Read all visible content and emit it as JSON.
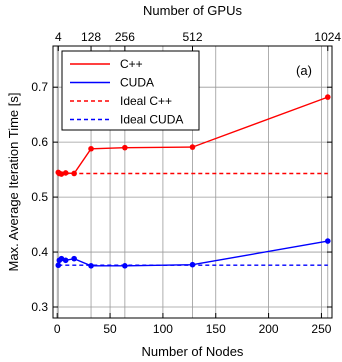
{
  "chart_data": {
    "type": "line",
    "xlabel": "Number of Nodes",
    "ylabel": "Max. Average Iteration Time [s]",
    "top_xlabel": "Number of GPUs",
    "annotation": "(a)",
    "xlim": [
      -4,
      260
    ],
    "ylim": [
      0.28,
      0.775
    ],
    "x_ticks": [
      0,
      50,
      100,
      150,
      200,
      250
    ],
    "y_ticks": [
      0.3,
      0.4,
      0.5,
      0.6,
      0.7
    ],
    "top_ticks": [
      {
        "label": "4",
        "nodes": 1
      },
      {
        "label": "128",
        "nodes": 32
      },
      {
        "label": "256",
        "nodes": 64
      },
      {
        "label": "512",
        "nodes": 128
      },
      {
        "label": "1024",
        "nodes": 256
      }
    ],
    "grid": true,
    "legend_position": "top-left",
    "series": [
      {
        "name": "C++",
        "color": "#ff0000",
        "dashed": false,
        "markers": true,
        "x": [
          1,
          2,
          4,
          8,
          16,
          32,
          64,
          128,
          256
        ],
        "y": [
          0.545,
          0.543,
          0.542,
          0.544,
          0.543,
          0.588,
          0.59,
          0.591,
          0.682
        ]
      },
      {
        "name": "CUDA",
        "color": "#0000ff",
        "dashed": false,
        "markers": true,
        "x": [
          1,
          2,
          4,
          8,
          16,
          32,
          64,
          128,
          256
        ],
        "y": [
          0.376,
          0.385,
          0.388,
          0.385,
          0.388,
          0.375,
          0.375,
          0.377,
          0.42
        ]
      },
      {
        "name": "Ideal C++",
        "color": "#ff0000",
        "dashed": true,
        "markers": false,
        "x": [
          1,
          256
        ],
        "y": [
          0.543,
          0.543
        ]
      },
      {
        "name": "Ideal CUDA",
        "color": "#0000ff",
        "dashed": true,
        "markers": false,
        "x": [
          1,
          256
        ],
        "y": [
          0.376,
          0.376
        ]
      }
    ]
  }
}
